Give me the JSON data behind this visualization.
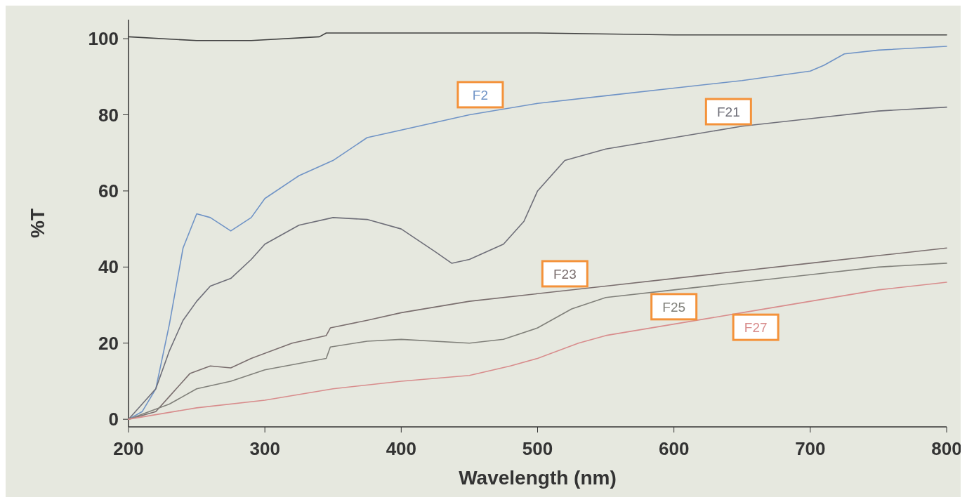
{
  "chart_data": {
    "type": "line",
    "xlabel": "Wavelength (nm)",
    "ylabel": "%T",
    "xlim": [
      200,
      800
    ],
    "ylim": [
      -2,
      105
    ],
    "xticks": [
      200,
      300,
      400,
      500,
      600,
      700,
      800
    ],
    "yticks": [
      0,
      20,
      40,
      60,
      80,
      100
    ],
    "grid": false,
    "marker": "none",
    "line_style": "solid",
    "series": [
      {
        "color": "#404040",
        "x": [
          200,
          250,
          290,
          340,
          345,
          500,
          600,
          800
        ],
        "values": [
          100.5,
          99.5,
          99.5,
          100.5,
          101.5,
          101.5,
          101,
          101
        ]
      },
      {
        "name": "F2",
        "color": "#6f93c6",
        "x": [
          200,
          210,
          220,
          230,
          240,
          250,
          260,
          275,
          290,
          300,
          325,
          350,
          375,
          400,
          450,
          500,
          550,
          600,
          650,
          700,
          710,
          725,
          750,
          800
        ],
        "values": [
          0,
          2,
          8,
          25,
          45,
          54,
          53,
          49.5,
          53,
          58,
          64,
          68,
          74,
          76,
          80,
          83,
          85,
          87,
          89,
          91.5,
          93,
          96,
          97,
          98
        ]
      },
      {
        "name": "F21",
        "color": "#6e6e78",
        "x": [
          200,
          220,
          230,
          240,
          250,
          260,
          275,
          290,
          300,
          325,
          350,
          375,
          400,
          425,
          437,
          450,
          475,
          490,
          500,
          520,
          550,
          600,
          650,
          700,
          750,
          800
        ],
        "values": [
          0,
          8,
          18,
          26,
          31,
          35,
          37,
          42,
          46,
          51,
          53,
          52.5,
          50,
          44,
          41,
          42,
          46,
          52,
          60,
          68,
          71,
          74,
          77,
          79,
          81,
          82
        ]
      },
      {
        "name": "F23",
        "color": "#7a6e6e",
        "x": [
          200,
          220,
          230,
          245,
          260,
          275,
          290,
          320,
          345,
          348,
          375,
          400,
          450,
          500,
          550,
          600,
          700,
          750,
          800
        ],
        "values": [
          0,
          2,
          6,
          12,
          14,
          13.5,
          16,
          20,
          22,
          24,
          26,
          28,
          31,
          33,
          35,
          37,
          41,
          43,
          45
        ]
      },
      {
        "name": "F25",
        "color": "#80807a",
        "x": [
          200,
          230,
          250,
          275,
          300,
          345,
          348,
          375,
          400,
          450,
          475,
          500,
          525,
          550,
          600,
          700,
          750,
          800
        ],
        "values": [
          0,
          4,
          8,
          10,
          13,
          16,
          19,
          20.5,
          21,
          20,
          21,
          24,
          29,
          32,
          34,
          38,
          40,
          41
        ]
      },
      {
        "name": "F27",
        "color": "#d88c8c",
        "x": [
          200,
          250,
          300,
          350,
          400,
          450,
          480,
          500,
          530,
          550,
          600,
          650,
          700,
          750,
          800
        ],
        "values": [
          0,
          3,
          5,
          8,
          10,
          11.5,
          14,
          16,
          20,
          22,
          25,
          28,
          31,
          34,
          36
        ]
      }
    ]
  }
}
